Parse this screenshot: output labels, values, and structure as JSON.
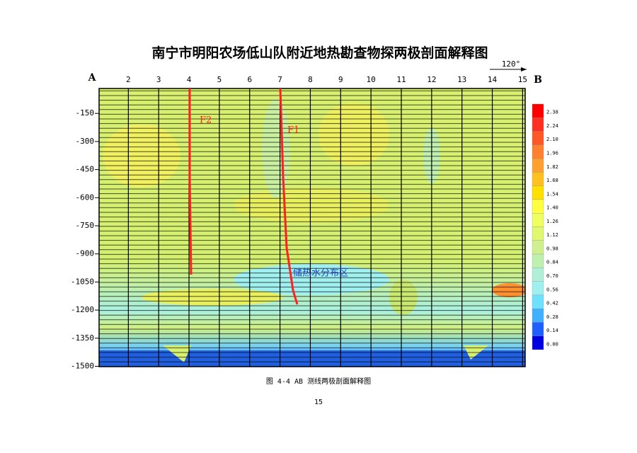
{
  "title": "南宁市明阳农场低山队附近地热勘查物探两极剖面解释图",
  "figure": {
    "end_labels": [
      "A",
      "B"
    ],
    "azimuth": "120°",
    "stations": [
      "2",
      "3",
      "4",
      "5",
      "6",
      "7",
      "8",
      "9",
      "10",
      "11",
      "12",
      "13",
      "14",
      "15"
    ],
    "depths": [
      "-150",
      "-300",
      "-450",
      "-600",
      "-750",
      "-900",
      "-1050",
      "-1200",
      "-1350",
      "-1500"
    ],
    "colorbar": [
      "2.38",
      "2.24",
      "2.10",
      "1.96",
      "1.82",
      "1.68",
      "1.54",
      "1.40",
      "1.26",
      "1.12",
      "0.98",
      "0.84",
      "0.70",
      "0.56",
      "0.42",
      "0.28",
      "0.14",
      "0.00"
    ],
    "annotations": [
      "F2",
      "F1",
      "储热水分布区"
    ]
  },
  "caption": "图 4-4 AB 测线两极剖面解释图",
  "page_number": "15"
}
